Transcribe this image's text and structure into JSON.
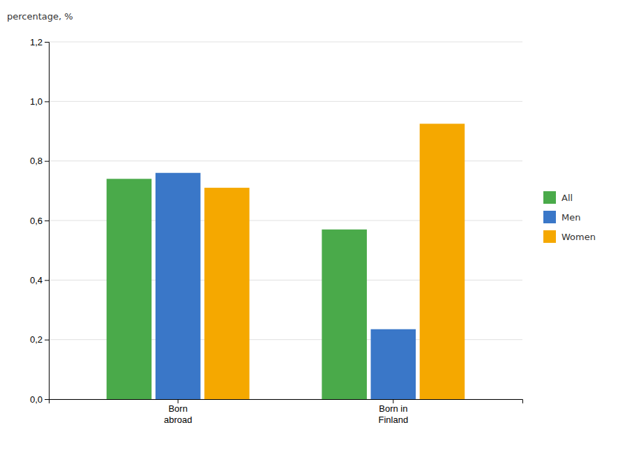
{
  "chart_data": {
    "type": "bar",
    "ylabel": "percentage, %",
    "categories": [
      "Born\nabroad",
      "Born in\nFinland"
    ],
    "series": [
      {
        "name": "All",
        "color": "#4aaa4a",
        "values": [
          0.74,
          0.57
        ]
      },
      {
        "name": "Men",
        "color": "#3a77c8",
        "values": [
          0.76,
          0.235
        ]
      },
      {
        "name": "Women",
        "color": "#f5a800",
        "values": [
          0.71,
          0.925
        ]
      }
    ],
    "ylim": [
      0,
      1.2
    ],
    "yticks": [
      {
        "value": 0.0,
        "label": "0,0"
      },
      {
        "value": 0.2,
        "label": "0,2"
      },
      {
        "value": 0.4,
        "label": "0,4"
      },
      {
        "value": 0.6,
        "label": "0,6"
      },
      {
        "value": 0.8,
        "label": "0,8"
      },
      {
        "value": 1.0,
        "label": "1,0"
      },
      {
        "value": 1.2,
        "label": "1,2"
      }
    ],
    "grid": true,
    "legend": "right"
  }
}
